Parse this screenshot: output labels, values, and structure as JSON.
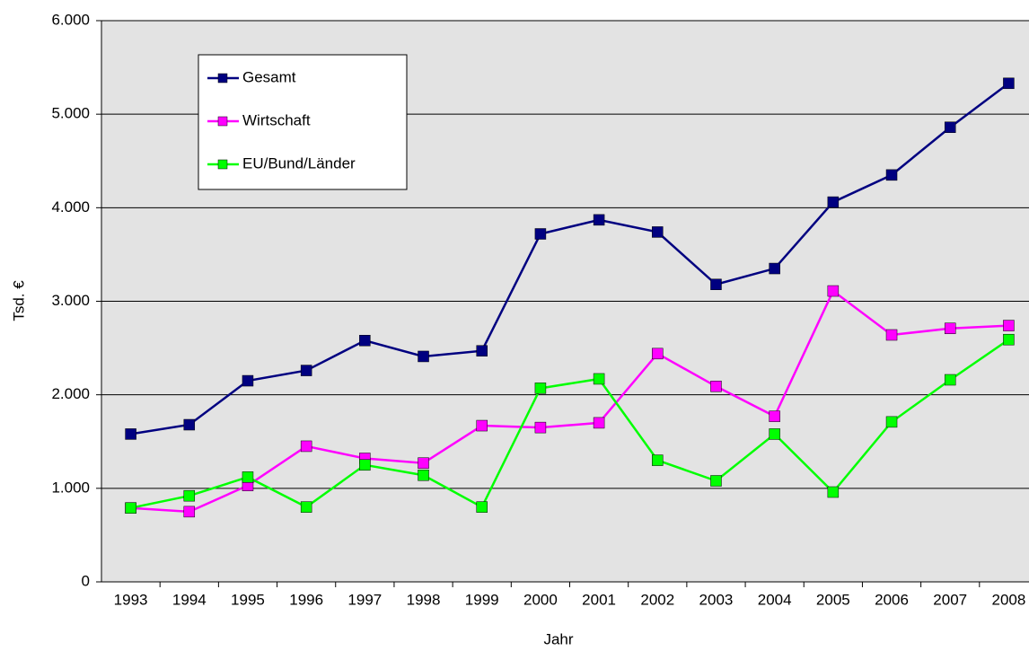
{
  "chart_data": {
    "type": "line",
    "x_label": "Jahr",
    "y_label": "Tsd. €",
    "categories": [
      "1993",
      "1994",
      "1995",
      "1996",
      "1997",
      "1998",
      "1999",
      "2000",
      "2001",
      "2002",
      "2003",
      "2004",
      "2005",
      "2006",
      "2007",
      "2008"
    ],
    "series": [
      {
        "name": "Gesamt",
        "color": "#000080",
        "values": [
          1580,
          1680,
          2150,
          2260,
          2580,
          2410,
          2470,
          3720,
          3870,
          3740,
          3180,
          3350,
          4060,
          4350,
          4860,
          5330
        ]
      },
      {
        "name": "Wirtschaft",
        "color": "#ff00ff",
        "values": [
          790,
          750,
          1030,
          1450,
          1320,
          1270,
          1670,
          1650,
          1700,
          2440,
          2090,
          1770,
          3110,
          2640,
          2710,
          2740
        ]
      },
      {
        "name": "EU/Bund/Länder",
        "color": "#00ff00",
        "values": [
          790,
          920,
          1120,
          800,
          1250,
          1140,
          800,
          2070,
          2170,
          1300,
          1080,
          1580,
          960,
          1710,
          2160,
          2590
        ]
      }
    ],
    "ylim": [
      0,
      6000
    ],
    "yticks": [
      0,
      {
        "value": 1000,
        "label": "1.000"
      },
      {
        "value": 2000,
        "label": "2.000"
      },
      {
        "value": 3000,
        "label": "3.000"
      },
      {
        "value": 4000,
        "label": "4.000"
      },
      {
        "value": 5000,
        "label": "5.000"
      },
      {
        "value": 6000,
        "label": "6.000"
      }
    ],
    "grid": true,
    "legend": "upper left"
  }
}
